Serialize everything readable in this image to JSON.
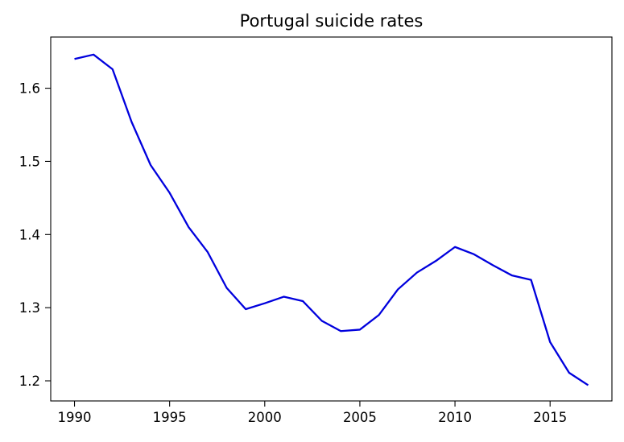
{
  "chart_data": {
    "type": "line",
    "title": "Portugal suicide rates",
    "xlabel": "",
    "ylabel": "",
    "xlim": [
      1988.75,
      2018.25
    ],
    "ylim": [
      1.1725,
      1.67
    ],
    "xticks": [
      1990,
      1995,
      2000,
      2005,
      2010,
      2015
    ],
    "xtick_labels": [
      "1990",
      "1995",
      "2000",
      "2005",
      "2010",
      "2015"
    ],
    "yticks": [
      1.2,
      1.3,
      1.4,
      1.5,
      1.6
    ],
    "ytick_labels": [
      "1.2",
      "1.3",
      "1.4",
      "1.5",
      "1.6"
    ],
    "grid": false,
    "line_color": "#0000dd",
    "x": [
      1990,
      1991,
      1992,
      1993,
      1994,
      1995,
      1996,
      1997,
      1998,
      1999,
      2000,
      2001,
      2002,
      2003,
      2004,
      2005,
      2006,
      2007,
      2008,
      2009,
      2010,
      2011,
      2012,
      2013,
      2014,
      2015,
      2016,
      2017
    ],
    "values": [
      1.64,
      1.646,
      1.626,
      1.554,
      1.495,
      1.457,
      1.41,
      1.376,
      1.327,
      1.298,
      1.306,
      1.315,
      1.309,
      1.282,
      1.268,
      1.27,
      1.29,
      1.325,
      1.348,
      1.364,
      1.383,
      1.373,
      1.358,
      1.344,
      1.338,
      1.253,
      1.211,
      1.194
    ]
  }
}
